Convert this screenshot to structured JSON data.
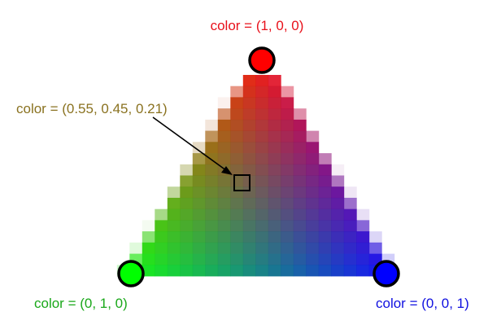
{
  "vertices": {
    "top": {
      "label": "color = (1, 0, 0)",
      "rgb": [
        1,
        0,
        0
      ],
      "text_color": "#e8101a",
      "fill": "#ff0000"
    },
    "left": {
      "label": "color = (0, 1, 0)",
      "rgb": [
        0,
        1,
        0
      ],
      "text_color": "#1aa81a",
      "fill": "#00ff00"
    },
    "right": {
      "label": "color = (0, 0, 1)",
      "rgb": [
        0,
        0,
        1
      ],
      "text_color": "#1010e0",
      "fill": "#0000ff"
    }
  },
  "sample": {
    "label": "color = (0.55, 0.45, 0.21)",
    "rgb": [
      0.55,
      0.45,
      0.21
    ],
    "text_color": "#8a7220"
  },
  "grid": {
    "rows": 18
  }
}
